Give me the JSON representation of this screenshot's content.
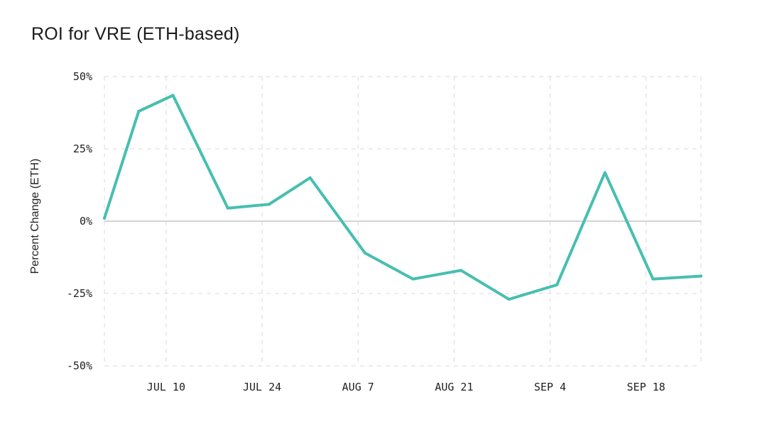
{
  "chart_data": {
    "type": "line",
    "title": "ROI for VRE (ETH-based)",
    "ylabel": "Percent Change (ETH)",
    "xlabel": "",
    "ylim": [
      -50,
      50
    ],
    "yticks": [
      {
        "value": 50,
        "label": "50%"
      },
      {
        "value": 25,
        "label": "25%"
      },
      {
        "value": 0,
        "label": "0%"
      },
      {
        "value": -25,
        "label": "-25%"
      },
      {
        "value": -50,
        "label": "-50%"
      }
    ],
    "xlim": [
      "2024-07-01",
      "2024-09-26"
    ],
    "xticks": [
      {
        "date": "2024-07-10",
        "label": "JUL 10"
      },
      {
        "date": "2024-07-24",
        "label": "JUL 24"
      },
      {
        "date": "2024-08-07",
        "label": "AUG 7"
      },
      {
        "date": "2024-08-21",
        "label": "AUG 21"
      },
      {
        "date": "2024-09-04",
        "label": "SEP 4"
      },
      {
        "date": "2024-09-18",
        "label": "SEP 18"
      }
    ],
    "grid": true,
    "series": [
      {
        "color": "#46bfb0",
        "points": [
          {
            "x": "2024-07-01",
            "y": 1
          },
          {
            "x": "2024-07-06",
            "y": 38
          },
          {
            "x": "2024-07-11",
            "y": 43.5
          },
          {
            "x": "2024-07-19",
            "y": 4.5
          },
          {
            "x": "2024-07-25",
            "y": 5.8
          },
          {
            "x": "2024-07-31",
            "y": 15
          },
          {
            "x": "2024-08-08",
            "y": -11
          },
          {
            "x": "2024-08-15",
            "y": -20
          },
          {
            "x": "2024-08-22",
            "y": -17
          },
          {
            "x": "2024-08-29",
            "y": -27
          },
          {
            "x": "2024-09-05",
            "y": -22
          },
          {
            "x": "2024-09-12",
            "y": 16.8
          },
          {
            "x": "2024-09-19",
            "y": -20
          },
          {
            "x": "2024-09-26",
            "y": -19
          }
        ]
      }
    ]
  }
}
